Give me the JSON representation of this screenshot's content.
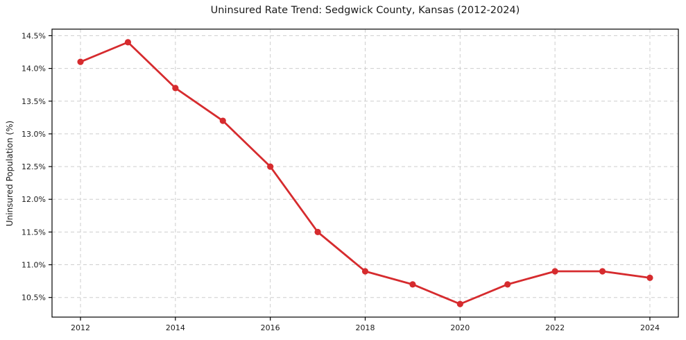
{
  "figure": {
    "background": "#ffffff"
  },
  "chart_data": {
    "type": "line",
    "title": "Uninsured Rate Trend: Sedgwick County, Kansas (2012-2024)",
    "xlabel": "",
    "ylabel": "Uninsured Population (%)",
    "x": [
      2012,
      2013,
      2014,
      2015,
      2016,
      2017,
      2018,
      2019,
      2020,
      2021,
      2022,
      2023,
      2024
    ],
    "values": [
      14.1,
      14.4,
      13.7,
      13.2,
      12.5,
      11.5,
      10.9,
      10.7,
      10.4,
      10.7,
      10.9,
      10.9,
      10.8
    ],
    "xlim": [
      2011.4,
      2024.6
    ],
    "ylim": [
      10.2,
      14.6
    ],
    "x_ticks": [
      2012,
      2014,
      2016,
      2018,
      2020,
      2022,
      2024
    ],
    "x_tick_labels": [
      "2012",
      "2014",
      "2016",
      "2018",
      "2020",
      "2022",
      "2024"
    ],
    "y_ticks": [
      10.5,
      11.0,
      11.5,
      12.0,
      12.5,
      13.0,
      13.5,
      14.0,
      14.5
    ],
    "y_tick_labels": [
      "10.5%",
      "11.0%",
      "11.5%",
      "12.0%",
      "12.5%",
      "13.0%",
      "13.5%",
      "14.0%",
      "14.5%"
    ],
    "grid": true,
    "grid_style": "dashed",
    "legend": "none",
    "line_color": "#d62b2e",
    "marker": "circle",
    "grid_color": "#cdcdcd",
    "spine_color": "#000000",
    "text_color": "#1a1a1a"
  }
}
